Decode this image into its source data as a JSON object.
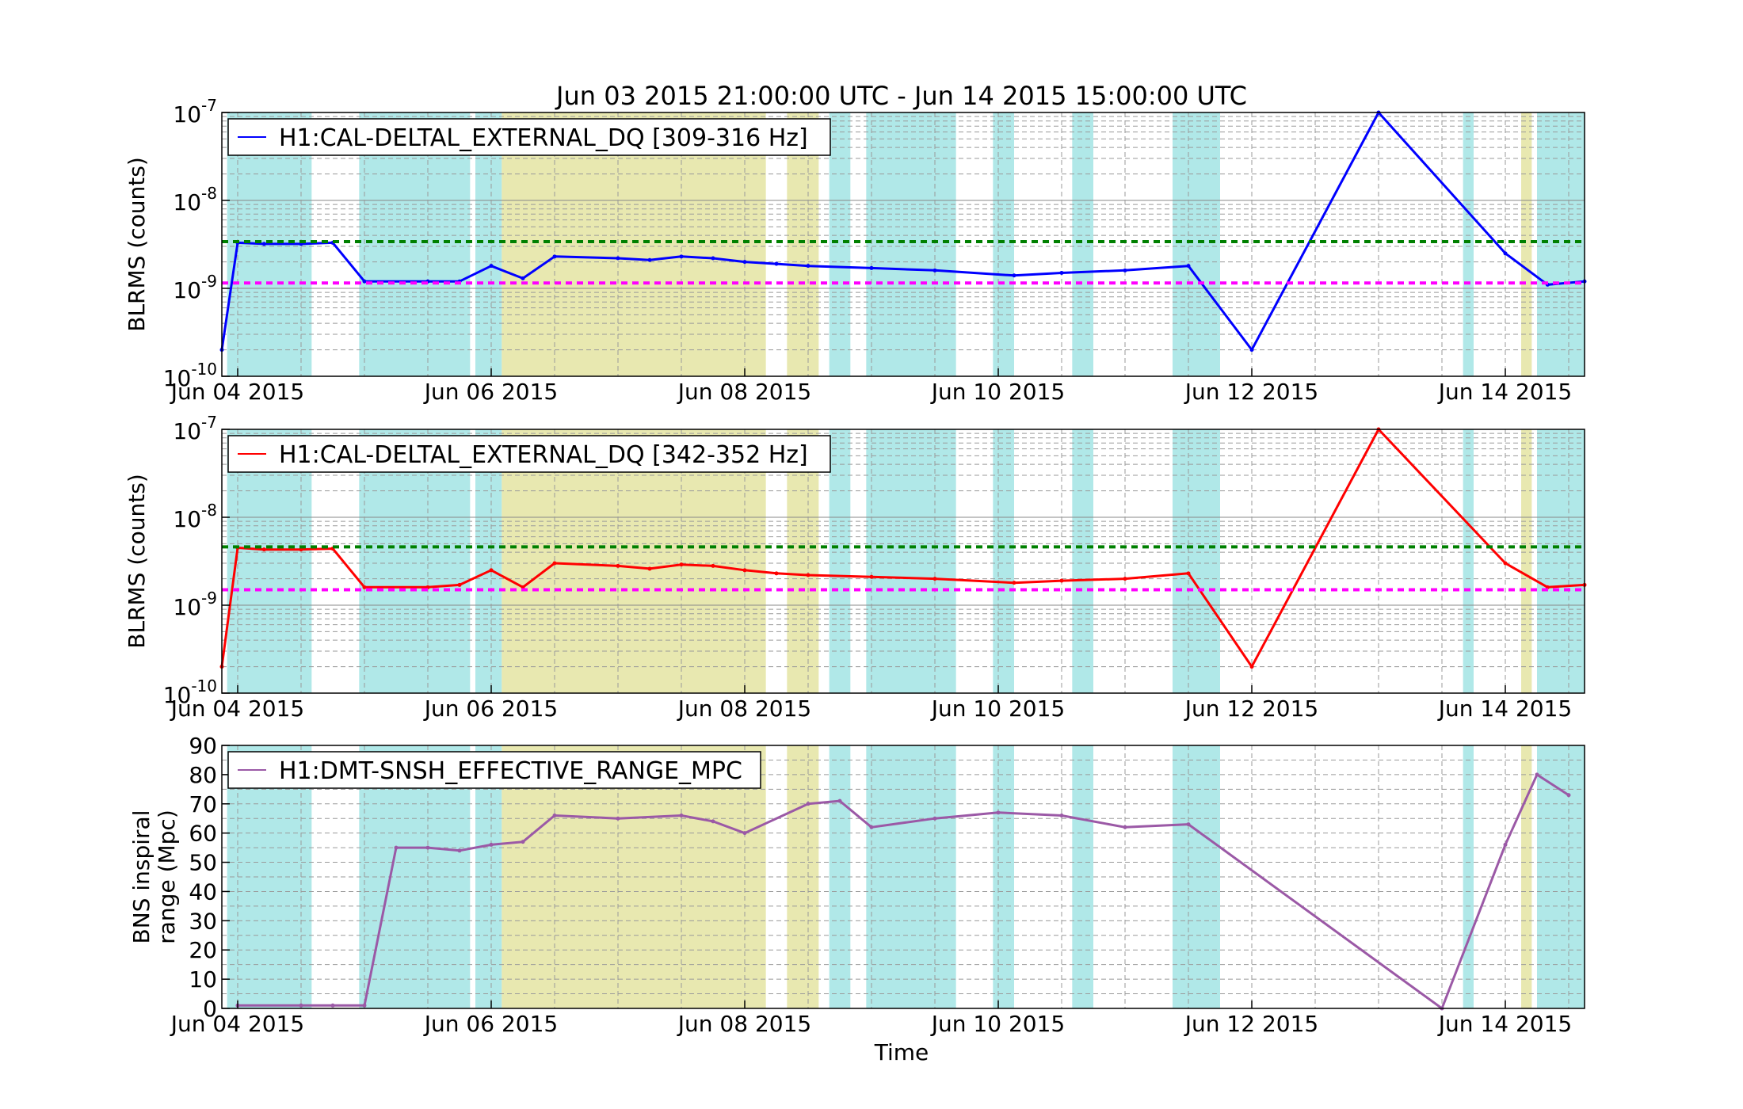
{
  "figure": {
    "title": "Jun 03 2015 21:00:00 UTC - Jun 14 2015 15:00:00 UTC",
    "xlabel": "Time"
  },
  "chart_data": [
    {
      "type": "line",
      "ylabel": "BLRMS (counts)",
      "yscale": "log",
      "ylim": [
        1e-10,
        1e-07
      ],
      "yticks": [
        {
          "value": 1e-10,
          "base": "10",
          "exp": "-10"
        },
        {
          "value": 1e-09,
          "base": "10",
          "exp": "-9"
        },
        {
          "value": 1e-08,
          "base": "10",
          "exp": "-8"
        },
        {
          "value": 1e-07,
          "base": "10",
          "exp": "-7"
        }
      ],
      "xlim": [
        "2015-06-03T21:00",
        "2015-06-14T15:00"
      ],
      "xticks": [
        {
          "value": "2015-06-04",
          "label": "Jun 04 2015"
        },
        {
          "value": "2015-06-06",
          "label": "Jun 06 2015"
        },
        {
          "value": "2015-06-08",
          "label": "Jun 08 2015"
        },
        {
          "value": "2015-06-10",
          "label": "Jun 10 2015"
        },
        {
          "value": "2015-06-12",
          "label": "Jun 12 2015"
        },
        {
          "value": "2015-06-14",
          "label": "Jun 14 2015"
        }
      ],
      "grid": true,
      "legend_position": "top-left",
      "series": [
        {
          "name": "H1:CAL-DELTAL_EXTERNAL_DQ [309-316 Hz]",
          "color": "#0000ff",
          "x": [
            "2015-06-03T21:00",
            "2015-06-04T00:00",
            "2015-06-04T05:00",
            "2015-06-04T12:00",
            "2015-06-04T18:00",
            "2015-06-05T00:00",
            "2015-06-05T12:00",
            "2015-06-05T18:00",
            "2015-06-06T00:00",
            "2015-06-06T06:00",
            "2015-06-06T12:00",
            "2015-06-07T00:00",
            "2015-06-07T06:00",
            "2015-06-07T12:00",
            "2015-06-07T18:00",
            "2015-06-08T00:00",
            "2015-06-08T06:00",
            "2015-06-08T12:00",
            "2015-06-09T00:00",
            "2015-06-09T12:00",
            "2015-06-10T03:00",
            "2015-06-10T12:00",
            "2015-06-11T00:00",
            "2015-06-11T12:00",
            "2015-06-12T00:00",
            "2015-06-13T00:00",
            "2015-06-14T00:00",
            "2015-06-14T08:00",
            "2015-06-14T15:00"
          ],
          "y": [
            2e-10,
            3.3e-09,
            3.2e-09,
            3.2e-09,
            3.3e-09,
            1.2e-09,
            1.2e-09,
            1.2e-09,
            1.8e-09,
            1.3e-09,
            2.3e-09,
            2.2e-09,
            2.1e-09,
            2.3e-09,
            2.2e-09,
            2e-09,
            1.9e-09,
            1.8e-09,
            1.7e-09,
            1.6e-09,
            1.4e-09,
            1.5e-09,
            1.6e-09,
            1.8e-09,
            2e-10,
            1e-07,
            2.5e-09,
            1.1e-09,
            1.2e-09
          ]
        }
      ],
      "reference_lines": [
        {
          "value": 3.4e-09,
          "color": "#008000"
        },
        {
          "value": 1.15e-09,
          "color": "#ff00ff"
        }
      ]
    },
    {
      "type": "line",
      "ylabel": "BLRMS (counts)",
      "yscale": "log",
      "ylim": [
        1e-10,
        1e-07
      ],
      "yticks": [
        {
          "value": 1e-10,
          "base": "10",
          "exp": "-10"
        },
        {
          "value": 1e-09,
          "base": "10",
          "exp": "-9"
        },
        {
          "value": 1e-08,
          "base": "10",
          "exp": "-8"
        },
        {
          "value": 1e-07,
          "base": "10",
          "exp": "-7"
        }
      ],
      "xlim": [
        "2015-06-03T21:00",
        "2015-06-14T15:00"
      ],
      "xticks": [
        {
          "value": "2015-06-04",
          "label": "Jun 04 2015"
        },
        {
          "value": "2015-06-06",
          "label": "Jun 06 2015"
        },
        {
          "value": "2015-06-08",
          "label": "Jun 08 2015"
        },
        {
          "value": "2015-06-10",
          "label": "Jun 10 2015"
        },
        {
          "value": "2015-06-12",
          "label": "Jun 12 2015"
        },
        {
          "value": "2015-06-14",
          "label": "Jun 14 2015"
        }
      ],
      "grid": true,
      "legend_position": "top-left",
      "series": [
        {
          "name": "H1:CAL-DELTAL_EXTERNAL_DQ [342-352 Hz]",
          "color": "#ff0000",
          "x": [
            "2015-06-03T21:00",
            "2015-06-04T00:00",
            "2015-06-04T05:00",
            "2015-06-04T12:00",
            "2015-06-04T18:00",
            "2015-06-05T00:00",
            "2015-06-05T12:00",
            "2015-06-05T18:00",
            "2015-06-06T00:00",
            "2015-06-06T06:00",
            "2015-06-06T12:00",
            "2015-06-07T00:00",
            "2015-06-07T06:00",
            "2015-06-07T12:00",
            "2015-06-07T18:00",
            "2015-06-08T00:00",
            "2015-06-08T06:00",
            "2015-06-08T12:00",
            "2015-06-09T00:00",
            "2015-06-09T12:00",
            "2015-06-10T03:00",
            "2015-06-10T12:00",
            "2015-06-11T00:00",
            "2015-06-11T12:00",
            "2015-06-12T00:00",
            "2015-06-13T00:00",
            "2015-06-14T00:00",
            "2015-06-14T08:00",
            "2015-06-14T15:00"
          ],
          "y": [
            2e-10,
            4.5e-09,
            4.3e-09,
            4.3e-09,
            4.4e-09,
            1.6e-09,
            1.6e-09,
            1.7e-09,
            2.5e-09,
            1.6e-09,
            3e-09,
            2.8e-09,
            2.6e-09,
            2.9e-09,
            2.8e-09,
            2.5e-09,
            2.3e-09,
            2.2e-09,
            2.1e-09,
            2e-09,
            1.8e-09,
            1.9e-09,
            2e-09,
            2.3e-09,
            2e-10,
            1e-07,
            3e-09,
            1.6e-09,
            1.7e-09
          ]
        }
      ],
      "reference_lines": [
        {
          "value": 4.6e-09,
          "color": "#008000"
        },
        {
          "value": 1.5e-09,
          "color": "#ff00ff"
        }
      ]
    },
    {
      "type": "line",
      "ylabel": [
        "BNS inspiral",
        "range (Mpc)"
      ],
      "ylim": [
        0,
        90
      ],
      "yticks": [
        0,
        10,
        20,
        30,
        40,
        50,
        60,
        70,
        80,
        90
      ],
      "xlim": [
        "2015-06-03T21:00",
        "2015-06-14T15:00"
      ],
      "xticks": [
        {
          "value": "2015-06-04",
          "label": "Jun 04 2015"
        },
        {
          "value": "2015-06-06",
          "label": "Jun 06 2015"
        },
        {
          "value": "2015-06-08",
          "label": "Jun 08 2015"
        },
        {
          "value": "2015-06-10",
          "label": "Jun 10 2015"
        },
        {
          "value": "2015-06-12",
          "label": "Jun 12 2015"
        },
        {
          "value": "2015-06-14",
          "label": "Jun 14 2015"
        }
      ],
      "grid": true,
      "legend_position": "top-left",
      "series": [
        {
          "name": "H1:DMT-SNSH_EFFECTIVE_RANGE_MPC",
          "color": "#9b59a6",
          "x": [
            "2015-06-04T00:00",
            "2015-06-04T12:00",
            "2015-06-04T18:00",
            "2015-06-05T00:00",
            "2015-06-05T06:00",
            "2015-06-05T12:00",
            "2015-06-05T18:00",
            "2015-06-06T00:00",
            "2015-06-06T06:00",
            "2015-06-06T12:00",
            "2015-06-07T00:00",
            "2015-06-07T12:00",
            "2015-06-07T18:00",
            "2015-06-08T00:00",
            "2015-06-08T12:00",
            "2015-06-08T18:00",
            "2015-06-09T00:00",
            "2015-06-09T12:00",
            "2015-06-10T00:00",
            "2015-06-10T12:00",
            "2015-06-11T00:00",
            "2015-06-11T12:00",
            "2015-06-13T12:00",
            "2015-06-14T00:00",
            "2015-06-14T06:00",
            "2015-06-14T12:00"
          ],
          "y": [
            1,
            1,
            1,
            1,
            55,
            55,
            54,
            56,
            57,
            66,
            65,
            66,
            64,
            60,
            70,
            71,
            62,
            65,
            67,
            66,
            62,
            63,
            0,
            56,
            80,
            73
          ]
        }
      ],
      "reference_lines": []
    }
  ],
  "segments": {
    "cyan": [
      [
        "2015-06-03T22:00",
        "2015-06-04T14:00"
      ],
      [
        "2015-06-04T23:00",
        "2015-06-05T20:00"
      ],
      [
        "2015-06-05T21:00",
        "2015-06-06T02:00"
      ],
      [
        "2015-06-07T00:00",
        "2015-06-07T01:00"
      ],
      [
        "2015-06-08T16:00",
        "2015-06-08T20:00"
      ],
      [
        "2015-06-08T23:00",
        "2015-06-09T16:00"
      ],
      [
        "2015-06-09T23:00",
        "2015-06-10T03:00"
      ],
      [
        "2015-06-10T14:00",
        "2015-06-10T18:00"
      ],
      [
        "2015-06-11T09:00",
        "2015-06-11T18:00"
      ],
      [
        "2015-06-13T16:00",
        "2015-06-13T18:00"
      ],
      [
        "2015-06-14T06:00",
        "2015-06-14T15:00"
      ]
    ],
    "yellow": [
      [
        "2015-06-06T02:00",
        "2015-06-08T04:00"
      ],
      [
        "2015-06-08T08:00",
        "2015-06-08T14:00"
      ],
      [
        "2015-06-14T03:00",
        "2015-06-14T05:00"
      ]
    ],
    "cyan_color": "#b0e8e8",
    "yellow_color": "#e8e8b0"
  }
}
